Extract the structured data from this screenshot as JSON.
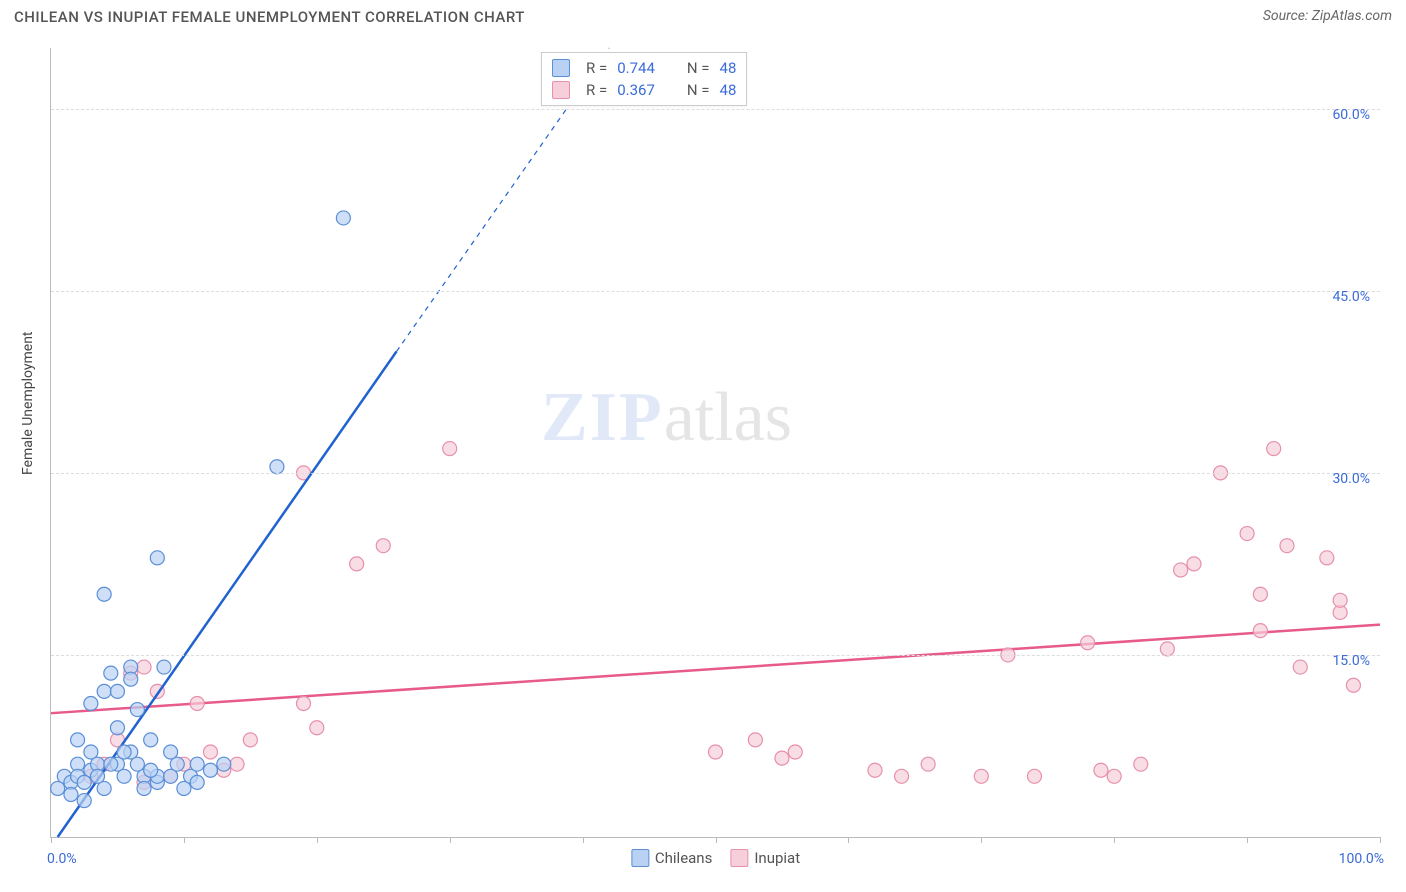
{
  "title": "CHILEAN VS INUPIAT FEMALE UNEMPLOYMENT CORRELATION CHART",
  "source": "Source: ZipAtlas.com",
  "ylabel": "Female Unemployment",
  "watermark_bold": "ZIP",
  "watermark_light": "atlas",
  "chart": {
    "type": "scatter",
    "xlim": [
      0,
      100
    ],
    "ylim": [
      0,
      65
    ],
    "yticks": [
      15,
      30,
      45,
      60
    ],
    "ytick_labels": [
      "15.0%",
      "30.0%",
      "45.0%",
      "60.0%"
    ],
    "xtick_positions": [
      0,
      10,
      20,
      30,
      40,
      50,
      60,
      70,
      80,
      90,
      100
    ],
    "xtick_label_left": "0.0%",
    "xtick_label_right": "100.0%",
    "background_color": "#ffffff",
    "grid_color": "#dddddd",
    "marker_radius": 7,
    "marker_stroke_width": 1.2,
    "trendline_width": 2.5,
    "dashed_extension_dash": "5,5"
  },
  "series": {
    "chileans": {
      "label": "Chileans",
      "fill": "#b9d2f3",
      "stroke": "#5b8fd6",
      "trend_color": "#1f62d0",
      "R": "0.744",
      "N": "48",
      "trend": {
        "x1": 0.5,
        "y1": 0,
        "x2": 26,
        "y2": 40,
        "x2_dash": 42,
        "y2_dash": 65
      },
      "points": [
        [
          0.5,
          4
        ],
        [
          1,
          5
        ],
        [
          1.5,
          4.5
        ],
        [
          2,
          6
        ],
        [
          2,
          5
        ],
        [
          2.5,
          3
        ],
        [
          3,
          5.5
        ],
        [
          3,
          7
        ],
        [
          3.5,
          6
        ],
        [
          4,
          4
        ],
        [
          4,
          12
        ],
        [
          4.5,
          13.5
        ],
        [
          5,
          6
        ],
        [
          5,
          9
        ],
        [
          5.5,
          5
        ],
        [
          6,
          14
        ],
        [
          6,
          13
        ],
        [
          6.5,
          10.5
        ],
        [
          7,
          5
        ],
        [
          7,
          4
        ],
        [
          7.5,
          8
        ],
        [
          8,
          4.5
        ],
        [
          8,
          5
        ],
        [
          8.5,
          14
        ],
        [
          9,
          5
        ],
        [
          9.5,
          6
        ],
        [
          10,
          4
        ],
        [
          10.5,
          5
        ],
        [
          11,
          4.5
        ],
        [
          12,
          5.5
        ],
        [
          13,
          6
        ],
        [
          17,
          30.5
        ],
        [
          22,
          51
        ],
        [
          4,
          20
        ],
        [
          8,
          23
        ],
        [
          5,
          12
        ],
        [
          3,
          11
        ],
        [
          2,
          8
        ],
        [
          6,
          7
        ],
        [
          4.5,
          6
        ],
        [
          2.5,
          4.5
        ],
        [
          1.5,
          3.5
        ],
        [
          3.5,
          5
        ],
        [
          5.5,
          7
        ],
        [
          6.5,
          6
        ],
        [
          7.5,
          5.5
        ],
        [
          9,
          7
        ],
        [
          11,
          6
        ]
      ]
    },
    "inupiat": {
      "label": "Inupiat",
      "fill": "#f7cfda",
      "stroke": "#e690ad",
      "trend_color": "#e85a8a",
      "R": "0.367",
      "N": "48",
      "trend": {
        "x1": 0,
        "y1": 10.2,
        "x2": 100,
        "y2": 17.5
      },
      "points": [
        [
          3,
          5
        ],
        [
          4,
          6
        ],
        [
          5,
          8
        ],
        [
          6,
          13.5
        ],
        [
          7,
          14
        ],
        [
          8,
          12
        ],
        [
          10,
          6
        ],
        [
          11,
          11
        ],
        [
          13,
          5.5
        ],
        [
          14,
          6
        ],
        [
          19,
          30
        ],
        [
          19,
          11
        ],
        [
          20,
          9
        ],
        [
          23,
          22.5
        ],
        [
          25,
          24
        ],
        [
          30,
          32
        ],
        [
          50,
          7
        ],
        [
          53,
          8
        ],
        [
          55,
          6.5
        ],
        [
          56,
          7
        ],
        [
          62,
          5.5
        ],
        [
          64,
          5
        ],
        [
          66,
          6
        ],
        [
          70,
          5
        ],
        [
          72,
          15
        ],
        [
          74,
          5
        ],
        [
          78,
          16
        ],
        [
          79,
          5.5
        ],
        [
          80,
          5
        ],
        [
          82,
          6
        ],
        [
          84,
          15.5
        ],
        [
          85,
          22
        ],
        [
          86,
          22.5
        ],
        [
          88,
          30
        ],
        [
          90,
          25
        ],
        [
          91,
          17
        ],
        [
          91,
          20
        ],
        [
          92,
          32
        ],
        [
          93,
          24
        ],
        [
          94,
          14
        ],
        [
          96,
          23
        ],
        [
          97,
          18.5
        ],
        [
          97,
          19.5
        ],
        [
          98,
          12.5
        ],
        [
          7,
          4.5
        ],
        [
          9,
          5
        ],
        [
          12,
          7
        ],
        [
          15,
          8
        ]
      ]
    }
  },
  "legend_r_label": "R =",
  "legend_n_label": "N ="
}
